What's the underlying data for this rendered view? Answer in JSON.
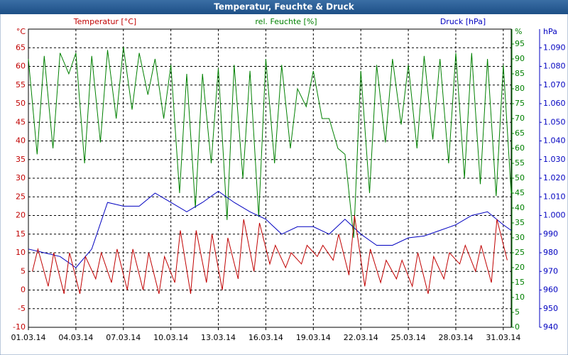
{
  "chart_data": {
    "type": "line",
    "title": "Temperatur, Feuchte & Druck",
    "xlim": [
      0,
      30.5
    ],
    "xticks": [
      {
        "value": 0,
        "label": "01.03.14"
      },
      {
        "value": 3,
        "label": "04.03.14"
      },
      {
        "value": 6,
        "label": "07.03.14"
      },
      {
        "value": 9,
        "label": "10.03.14"
      },
      {
        "value": 12,
        "label": "13.03.14"
      },
      {
        "value": 15,
        "label": "16.03.14"
      },
      {
        "value": 18,
        "label": "19.03.14"
      },
      {
        "value": 21,
        "label": "22.03.14"
      },
      {
        "value": 24,
        "label": "25.03.14"
      },
      {
        "value": 27,
        "label": "28.03.14"
      },
      {
        "value": 30,
        "label": "31.03.14"
      }
    ],
    "y_unit": "°C",
    "ylim": [
      -10,
      70
    ],
    "yticks": [
      -10,
      -5,
      0,
      5,
      10,
      15,
      20,
      25,
      30,
      35,
      40,
      45,
      50,
      55,
      60,
      65
    ],
    "y2_unit": "%",
    "y2lim": [
      0,
      100
    ],
    "y2ticks": [
      0,
      5,
      10,
      15,
      20,
      25,
      30,
      35,
      40,
      45,
      50,
      55,
      60,
      65,
      70,
      75,
      80,
      85,
      90,
      95
    ],
    "y3_unit": "hPa",
    "y3lim": [
      940,
      1100
    ],
    "y3ticks": [
      940,
      950,
      960,
      970,
      980,
      990,
      {
        "value": 1000,
        "label": "1.000"
      },
      {
        "value": 1010,
        "label": "1.010"
      },
      {
        "value": 1020,
        "label": "1.020"
      },
      {
        "value": 1030,
        "label": "1.030"
      },
      {
        "value": 1040,
        "label": "1.040"
      },
      {
        "value": 1050,
        "label": "1.050"
      },
      {
        "value": 1060,
        "label": "1.060"
      },
      {
        "value": 1070,
        "label": "1.070"
      },
      {
        "value": 1080,
        "label": "1.080"
      },
      {
        "value": 1090,
        "label": "1.090"
      }
    ],
    "grid": true,
    "series": [
      {
        "name": "Temperatur [°C]",
        "color": "#c00000",
        "axis": "y",
        "x": [
          0.25,
          0.6,
          1.25,
          1.6,
          2.25,
          2.6,
          3.25,
          3.6,
          4.25,
          4.6,
          5.25,
          5.6,
          6.25,
          6.6,
          7.25,
          7.6,
          8.25,
          8.6,
          9.25,
          9.6,
          10.25,
          10.6,
          11.25,
          11.6,
          12.25,
          12.6,
          13.25,
          13.6,
          14.25,
          14.6,
          15.25,
          15.6,
          16.25,
          16.6,
          17.25,
          17.6,
          18.25,
          18.6,
          19.25,
          19.6,
          20.25,
          20.6,
          21.25,
          21.6,
          22.25,
          22.6,
          23.25,
          23.6,
          24.25,
          24.6,
          25.25,
          25.6,
          26.25,
          26.6,
          27.25,
          27.6,
          28.25,
          28.6,
          29.25,
          29.6,
          30.25
        ],
        "values": [
          5,
          11,
          1,
          10,
          -1,
          10,
          -1,
          9,
          3,
          10,
          2,
          11,
          0,
          11,
          0,
          10,
          -1,
          9,
          2,
          16,
          -1,
          16,
          2,
          15,
          0,
          14,
          3,
          19,
          5,
          18,
          7,
          12,
          6,
          10,
          7,
          12,
          9,
          12,
          8,
          15,
          4,
          20,
          1,
          11,
          2,
          8,
          3,
          8,
          1,
          10,
          -1,
          9,
          3,
          10,
          7,
          12,
          5,
          12,
          2,
          19,
          8
        ]
      },
      {
        "name": "rel. Feuchte [%]",
        "color": "#008000",
        "axis": "y2",
        "x": [
          0,
          0.55,
          1,
          1.55,
          2,
          2.55,
          3,
          3.55,
          4,
          4.55,
          5,
          5.55,
          6,
          6.55,
          7,
          7.55,
          8,
          8.55,
          9,
          9.55,
          10,
          10.55,
          11,
          11.55,
          12,
          12.55,
          13,
          13.55,
          14,
          14.55,
          15,
          15.55,
          16,
          16.55,
          17,
          17.55,
          18,
          18.55,
          19,
          19.55,
          20,
          20.55,
          21,
          21.55,
          22,
          22.55,
          23,
          23.55,
          24,
          24.55,
          25,
          25.55,
          26,
          26.55,
          27,
          27.55,
          28,
          28.55,
          29,
          29.55,
          30,
          30.5
        ],
        "values": [
          90,
          58,
          91,
          60,
          92,
          85,
          92,
          55,
          91,
          62,
          93,
          70,
          94,
          73,
          92,
          78,
          90,
          70,
          88,
          45,
          85,
          40,
          85,
          55,
          87,
          36,
          88,
          50,
          86,
          37,
          90,
          55,
          88,
          60,
          80,
          74,
          86,
          70,
          70,
          60,
          58,
          30,
          86,
          45,
          88,
          62,
          90,
          68,
          88,
          60,
          91,
          63,
          90,
          55,
          92,
          50,
          92,
          48,
          90,
          44,
          88,
          45
        ]
      },
      {
        "name": "Druck [hPa]",
        "color": "#0000c0",
        "axis": "y3",
        "x": [
          0,
          1,
          2,
          3,
          4,
          5,
          6,
          7,
          8,
          9,
          10,
          11,
          12,
          13,
          14,
          15,
          16,
          17,
          18,
          19,
          20,
          21,
          22,
          23,
          24,
          25,
          26,
          27,
          28,
          29,
          30,
          30.5
        ],
        "values": [
          982,
          980,
          978,
          972,
          982,
          1007,
          1005,
          1005,
          1012,
          1007,
          1002,
          1007,
          1013,
          1007,
          1002,
          998,
          990,
          994,
          994,
          990,
          998,
          990,
          984,
          984,
          988,
          989,
          992,
          995,
          1000,
          1002,
          995,
          992
        ]
      }
    ]
  }
}
